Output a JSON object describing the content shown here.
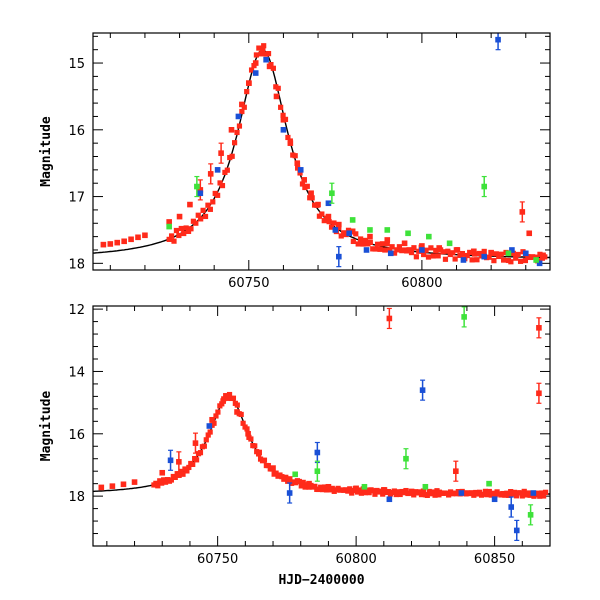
{
  "chart_data": [
    {
      "type": "scatter",
      "panel": "top",
      "xlabel": "",
      "ylabel": "Magnitude",
      "xlim": [
        60705,
        60837
      ],
      "ylim": [
        18.1,
        14.55
      ],
      "y_inverted": true,
      "xticks": [
        60750,
        60800
      ],
      "yticks": [
        15,
        16,
        17,
        18
      ],
      "model": {
        "t0": 60754,
        "peak": 14.8,
        "base": 17.95,
        "tau_rise": 9,
        "tau_decay": 9
      },
      "series": [
        {
          "color": "#000000",
          "role": "model-curve"
        },
        {
          "color": "#ff2a1a",
          "points": [
            [
              60708,
              17.72
            ],
            [
              60710,
              17.71
            ],
            [
              60712,
              17.69
            ],
            [
              60714,
              17.67
            ],
            [
              60716,
              17.64
            ],
            [
              60718,
              17.61
            ],
            [
              60720,
              17.58
            ],
            [
              60727,
              17.38
            ],
            [
              60730,
              17.3
            ],
            [
              60733,
              17.12
            ],
            [
              60736,
              16.9
            ],
            [
              60739,
              16.66
            ],
            [
              60742,
              16.35
            ],
            [
              60745,
              16.0
            ],
            [
              60748,
              15.62
            ],
            [
              60750,
              15.3
            ],
            [
              60752,
              15.0
            ],
            [
              60754,
              14.8
            ],
            [
              60756,
              15.05
            ],
            [
              60758,
              15.5
            ],
            [
              60760,
              15.85
            ],
            [
              60762,
              16.2
            ],
            [
              60764,
              16.5
            ],
            [
              60766,
              16.75
            ],
            [
              60768,
              16.95
            ],
            [
              60770,
              17.12
            ],
            [
              60773,
              17.3
            ],
            [
              60776,
              17.42
            ],
            [
              60780,
              17.52
            ],
            [
              60785,
              17.6
            ],
            [
              60790,
              17.65
            ],
            [
              60795,
              17.7
            ],
            [
              60800,
              17.74
            ],
            [
              60805,
              17.77
            ],
            [
              60810,
              17.8
            ],
            [
              60815,
              17.82
            ],
            [
              60820,
              17.84
            ],
            [
              60825,
              17.85
            ],
            [
              60830,
              17.86
            ],
            [
              60835,
              17.88
            ],
            [
              60829,
              17.23
            ],
            [
              60831,
              17.55
            ]
          ]
        },
        {
          "color": "#1a50d6",
          "points": [
            [
              60736,
              16.95
            ],
            [
              60741,
              16.6
            ],
            [
              60747,
              15.8
            ],
            [
              60752,
              15.15
            ],
            [
              60755,
              14.95
            ],
            [
              60760,
              16.0
            ],
            [
              60765,
              16.6
            ],
            [
              60773,
              17.1
            ],
            [
              60775,
              17.5
            ],
            [
              60776,
              17.9
            ],
            [
              60779,
              17.55
            ],
            [
              60784,
              17.8
            ],
            [
              60791,
              17.85
            ],
            [
              60800,
              17.8
            ],
            [
              60812,
              17.95
            ],
            [
              60818,
              17.9
            ],
            [
              60826,
              17.8
            ],
            [
              60822,
              14.65
            ],
            [
              60830,
              17.85
            ],
            [
              60834,
              18.0
            ]
          ]
        },
        {
          "color": "#3ee23a",
          "points": [
            [
              60727,
              17.45
            ],
            [
              60735,
              16.85
            ],
            [
              60774,
              16.95
            ],
            [
              60780,
              17.35
            ],
            [
              60785,
              17.5
            ],
            [
              60790,
              17.5
            ],
            [
              60796,
              17.55
            ],
            [
              60802,
              17.6
            ],
            [
              60808,
              17.7
            ],
            [
              60818,
              16.85
            ],
            [
              60825,
              17.85
            ],
            [
              60833,
              17.95
            ]
          ]
        }
      ]
    },
    {
      "type": "scatter",
      "panel": "bottom",
      "xlabel": "HJD−2400000",
      "ylabel": "Magnitude",
      "xlim": [
        60705,
        60870
      ],
      "ylim": [
        19.6,
        11.9
      ],
      "y_inverted": true,
      "xticks": [
        60750,
        60800,
        60850
      ],
      "yticks": [
        12,
        14,
        16,
        18
      ],
      "model": {
        "t0": 60754,
        "peak": 14.8,
        "base": 17.95,
        "tau_rise": 9,
        "tau_decay": 9
      },
      "series": [
        {
          "color": "#000000",
          "role": "model-curve"
        },
        {
          "color": "#ff2a1a",
          "points": [
            [
              60708,
              17.72
            ],
            [
              60712,
              17.68
            ],
            [
              60716,
              17.62
            ],
            [
              60720,
              17.55
            ],
            [
              60730,
              17.25
            ],
            [
              60736,
              16.9
            ],
            [
              60742,
              16.3
            ],
            [
              60748,
              15.55
            ],
            [
              60752,
              14.95
            ],
            [
              60754,
              14.8
            ],
            [
              60757,
              15.3
            ],
            [
              60761,
              16.0
            ],
            [
              60765,
              16.6
            ],
            [
              60770,
              17.1
            ],
            [
              60776,
              17.45
            ],
            [
              60783,
              17.6
            ],
            [
              60790,
              17.7
            ],
            [
              60800,
              17.75
            ],
            [
              60810,
              17.8
            ],
            [
              60820,
              17.85
            ],
            [
              60830,
              17.88
            ],
            [
              60840,
              17.9
            ],
            [
              60850,
              17.92
            ],
            [
              60860,
              17.93
            ],
            [
              60866,
              17.95
            ],
            [
              60812,
              12.3
            ],
            [
              60866,
              12.6
            ],
            [
              60866,
              14.7
            ],
            [
              60836,
              17.2
            ]
          ]
        },
        {
          "color": "#1a50d6",
          "points": [
            [
              60733,
              16.85
            ],
            [
              60747,
              15.75
            ],
            [
              60776,
              17.9
            ],
            [
              60786,
              16.6
            ],
            [
              60812,
              18.1
            ],
            [
              60824,
              14.6
            ],
            [
              60838,
              17.9
            ],
            [
              60850,
              18.1
            ],
            [
              60856,
              18.35
            ],
            [
              60858,
              19.1
            ],
            [
              60864,
              17.9
            ]
          ]
        },
        {
          "color": "#3ee23a",
          "points": [
            [
              60778,
              17.3
            ],
            [
              60786,
              17.2
            ],
            [
              60803,
              17.7
            ],
            [
              60818,
              16.8
            ],
            [
              60825,
              17.7
            ],
            [
              60839,
              12.25
            ],
            [
              60848,
              17.6
            ],
            [
              60863,
              18.6
            ]
          ]
        }
      ]
    }
  ]
}
